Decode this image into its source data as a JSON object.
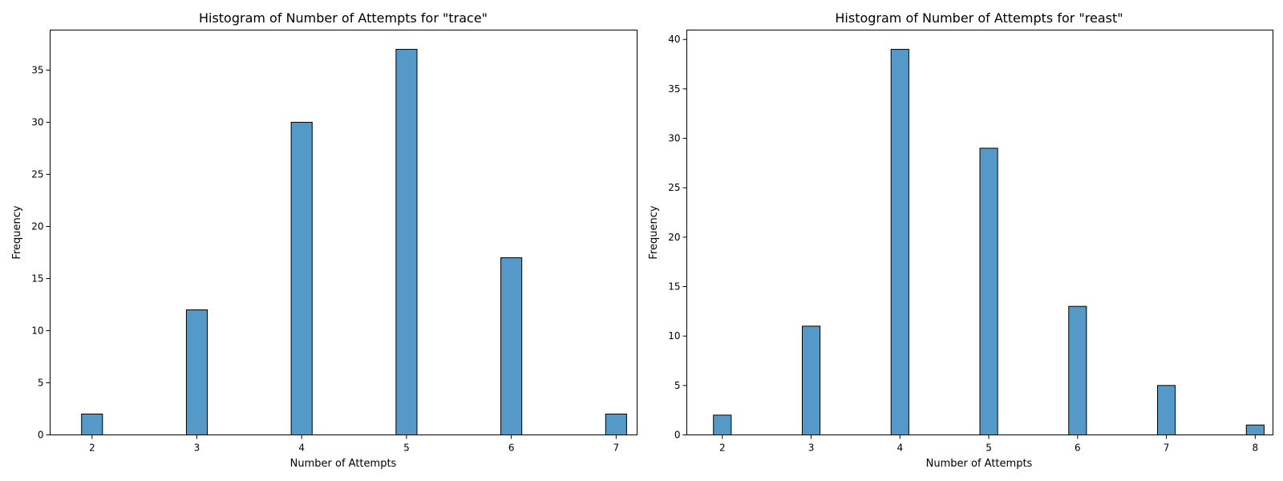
{
  "colors": {
    "bar_fill": "#5499c7",
    "bar_edge": "#000000"
  },
  "chart_data": [
    {
      "type": "bar",
      "title": "Histogram of Number of Attempts for \"trace\"",
      "xlabel": "Number of Attempts",
      "ylabel": "Frequency",
      "categories": [
        2,
        3,
        4,
        5,
        6,
        7
      ],
      "values": [
        2,
        12,
        30,
        37,
        17,
        2
      ],
      "xlim": [
        1.7,
        7.3
      ],
      "ylim": [
        0,
        38.85
      ],
      "xticks": [
        2,
        3,
        4,
        5,
        6,
        7
      ],
      "yticks": [
        0,
        5,
        10,
        15,
        20,
        25,
        30,
        35
      ],
      "bin_width_units": 0.2,
      "grid": false,
      "legend": "none"
    },
    {
      "type": "bar",
      "title": "Histogram of Number of Attempts for \"reast\"",
      "xlabel": "Number of Attempts",
      "ylabel": "Frequency",
      "categories": [
        2,
        3,
        4,
        5,
        6,
        7,
        8
      ],
      "values": [
        2,
        11,
        39,
        29,
        13,
        5,
        1
      ],
      "xlim": [
        1.7,
        8.3
      ],
      "ylim": [
        0,
        40.95
      ],
      "xticks": [
        2,
        3,
        4,
        5,
        6,
        7,
        8
      ],
      "yticks": [
        0,
        5,
        10,
        15,
        20,
        25,
        30,
        35,
        40
      ],
      "bin_width_units": 0.2,
      "grid": false,
      "legend": "none"
    }
  ]
}
